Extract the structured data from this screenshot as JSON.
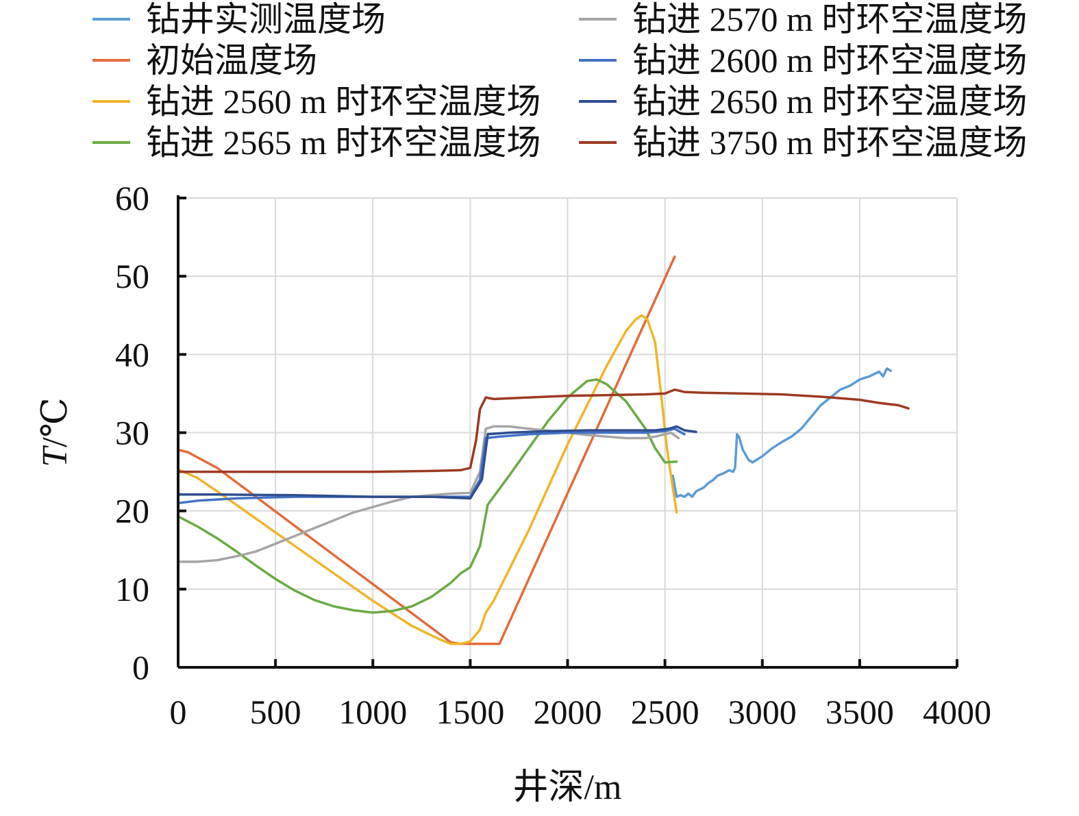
{
  "chart_data": {
    "type": "line",
    "xlabel": "井深/m",
    "ylabel_italic": "T",
    "ylabel_rest": "/℃",
    "xlim": [
      0,
      4000
    ],
    "ylim": [
      0,
      60
    ],
    "xticks": [
      0,
      500,
      1000,
      1500,
      2000,
      2500,
      3000,
      3500,
      4000
    ],
    "yticks": [
      0,
      10,
      20,
      30,
      40,
      50,
      60
    ],
    "xtick_labels": [
      "0",
      "500",
      "1000",
      "1500",
      "2000",
      "2500",
      "3000",
      "3500",
      "4000"
    ],
    "ytick_labels": [
      "0",
      "10",
      "20",
      "30",
      "40",
      "50",
      "60"
    ],
    "grid": true,
    "legend_position": "top",
    "series": [
      {
        "name": "钻井实测温度场",
        "color": "#5b9bd5",
        "points": [
          [
            2540,
            24.5
          ],
          [
            2555,
            22.5
          ],
          [
            2560,
            21.8
          ],
          [
            2580,
            22.0
          ],
          [
            2600,
            21.8
          ],
          [
            2620,
            22.2
          ],
          [
            2640,
            21.8
          ],
          [
            2660,
            22.5
          ],
          [
            2700,
            23.0
          ],
          [
            2720,
            23.5
          ],
          [
            2750,
            24.0
          ],
          [
            2770,
            24.5
          ],
          [
            2800,
            24.8
          ],
          [
            2830,
            25.2
          ],
          [
            2850,
            25.0
          ],
          [
            2860,
            25.5
          ],
          [
            2870,
            29.8
          ],
          [
            2880,
            29.5
          ],
          [
            2900,
            27.8
          ],
          [
            2930,
            26.5
          ],
          [
            2950,
            26.2
          ],
          [
            3000,
            27.0
          ],
          [
            3050,
            28.0
          ],
          [
            3100,
            28.8
          ],
          [
            3150,
            29.5
          ],
          [
            3200,
            30.5
          ],
          [
            3250,
            32.0
          ],
          [
            3300,
            33.5
          ],
          [
            3350,
            34.5
          ],
          [
            3400,
            35.5
          ],
          [
            3450,
            36.0
          ],
          [
            3500,
            36.8
          ],
          [
            3550,
            37.2
          ],
          [
            3600,
            37.8
          ],
          [
            3620,
            37.2
          ],
          [
            3640,
            38.2
          ],
          [
            3660,
            37.9
          ]
        ]
      },
      {
        "name": "初始温度场",
        "color": "#e26b3a",
        "points": [
          [
            0,
            27.8
          ],
          [
            50,
            27.5
          ],
          [
            200,
            25.5
          ],
          [
            1400,
            3.2
          ],
          [
            1450,
            3.0
          ],
          [
            1650,
            3.0
          ],
          [
            2550,
            52.5
          ]
        ]
      },
      {
        "name": "钻进 2560 m 时环空温度场",
        "color": "#f0b429",
        "points": [
          [
            0,
            25.3
          ],
          [
            100,
            24.2
          ],
          [
            200,
            22.5
          ],
          [
            400,
            19.0
          ],
          [
            600,
            15.5
          ],
          [
            800,
            12.0
          ],
          [
            1000,
            8.5
          ],
          [
            1200,
            5.3
          ],
          [
            1350,
            3.5
          ],
          [
            1400,
            3.0
          ],
          [
            1450,
            3.0
          ],
          [
            1500,
            3.3
          ],
          [
            1550,
            4.8
          ],
          [
            1580,
            7.0
          ],
          [
            1620,
            8.5
          ],
          [
            1700,
            12.5
          ],
          [
            1800,
            17.5
          ],
          [
            1900,
            23.0
          ],
          [
            2000,
            28.5
          ],
          [
            2100,
            33.5
          ],
          [
            2200,
            38.5
          ],
          [
            2300,
            43.0
          ],
          [
            2350,
            44.5
          ],
          [
            2380,
            45.0
          ],
          [
            2410,
            44.5
          ],
          [
            2450,
            41.5
          ],
          [
            2480,
            35.0
          ],
          [
            2510,
            28.0
          ],
          [
            2540,
            23.0
          ],
          [
            2560,
            19.8
          ]
        ]
      },
      {
        "name": "钻进 2565 m 时环空温度场",
        "color": "#6aaa44",
        "points": [
          [
            0,
            19.3
          ],
          [
            100,
            18.0
          ],
          [
            200,
            16.5
          ],
          [
            300,
            14.8
          ],
          [
            400,
            13.0
          ],
          [
            500,
            11.3
          ],
          [
            600,
            9.8
          ],
          [
            700,
            8.6
          ],
          [
            800,
            7.8
          ],
          [
            900,
            7.3
          ],
          [
            1000,
            7.0
          ],
          [
            1100,
            7.2
          ],
          [
            1200,
            7.8
          ],
          [
            1300,
            9.0
          ],
          [
            1400,
            10.8
          ],
          [
            1450,
            12.0
          ],
          [
            1500,
            12.8
          ],
          [
            1550,
            15.5
          ],
          [
            1590,
            20.8
          ],
          [
            1620,
            21.8
          ],
          [
            1700,
            24.5
          ],
          [
            1800,
            28.0
          ],
          [
            1900,
            31.5
          ],
          [
            2000,
            34.5
          ],
          [
            2100,
            36.6
          ],
          [
            2150,
            36.8
          ],
          [
            2200,
            36.2
          ],
          [
            2300,
            34.0
          ],
          [
            2400,
            30.5
          ],
          [
            2450,
            28.0
          ],
          [
            2500,
            26.2
          ],
          [
            2560,
            26.3
          ]
        ]
      },
      {
        "name": "钻进 2570 m 时环空温度场",
        "color": "#a5a5a5",
        "points": [
          [
            0,
            13.5
          ],
          [
            100,
            13.5
          ],
          [
            200,
            13.7
          ],
          [
            300,
            14.2
          ],
          [
            400,
            14.8
          ],
          [
            500,
            15.8
          ],
          [
            600,
            16.8
          ],
          [
            700,
            17.8
          ],
          [
            800,
            18.8
          ],
          [
            900,
            19.8
          ],
          [
            1000,
            20.5
          ],
          [
            1100,
            21.2
          ],
          [
            1200,
            21.8
          ],
          [
            1300,
            22.0
          ],
          [
            1400,
            22.2
          ],
          [
            1500,
            22.3
          ],
          [
            1550,
            25.0
          ],
          [
            1580,
            30.5
          ],
          [
            1620,
            30.8
          ],
          [
            1700,
            30.8
          ],
          [
            1800,
            30.5
          ],
          [
            2000,
            30.0
          ],
          [
            2100,
            29.7
          ],
          [
            2200,
            29.5
          ],
          [
            2300,
            29.3
          ],
          [
            2400,
            29.3
          ],
          [
            2450,
            29.5
          ],
          [
            2500,
            29.8
          ],
          [
            2530,
            30.0
          ],
          [
            2570,
            29.3
          ]
        ]
      },
      {
        "name": "钻进 2600 m 时环空温度场",
        "color": "#4472c4",
        "points": [
          [
            0,
            21.0
          ],
          [
            100,
            21.3
          ],
          [
            300,
            21.6
          ],
          [
            600,
            21.8
          ],
          [
            1000,
            21.8
          ],
          [
            1300,
            21.8
          ],
          [
            1500,
            21.8
          ],
          [
            1550,
            24.0
          ],
          [
            1580,
            29.3
          ],
          [
            1650,
            29.5
          ],
          [
            1800,
            29.8
          ],
          [
            2000,
            30.0
          ],
          [
            2200,
            30.0
          ],
          [
            2400,
            30.0
          ],
          [
            2500,
            30.2
          ],
          [
            2550,
            30.5
          ],
          [
            2600,
            29.8
          ]
        ]
      },
      {
        "name": "钻进 2650 m 时环空温度场",
        "color": "#2f4d8f",
        "points": [
          [
            0,
            22.1
          ],
          [
            200,
            22.1
          ],
          [
            600,
            22.0
          ],
          [
            1000,
            21.8
          ],
          [
            1300,
            21.8
          ],
          [
            1500,
            21.6
          ],
          [
            1560,
            24.0
          ],
          [
            1590,
            29.8
          ],
          [
            1700,
            30.0
          ],
          [
            1900,
            30.2
          ],
          [
            2100,
            30.3
          ],
          [
            2300,
            30.3
          ],
          [
            2450,
            30.3
          ],
          [
            2520,
            30.5
          ],
          [
            2560,
            30.8
          ],
          [
            2600,
            30.3
          ],
          [
            2660,
            30.1
          ]
        ]
      },
      {
        "name": "钻进 3750 m 时环空温度场",
        "color": "#9c3a22",
        "points": [
          [
            0,
            25.0
          ],
          [
            200,
            25.0
          ],
          [
            600,
            25.0
          ],
          [
            1000,
            25.0
          ],
          [
            1300,
            25.1
          ],
          [
            1450,
            25.2
          ],
          [
            1500,
            25.5
          ],
          [
            1530,
            29.0
          ],
          [
            1550,
            33.0
          ],
          [
            1580,
            34.5
          ],
          [
            1620,
            34.3
          ],
          [
            1800,
            34.5
          ],
          [
            2000,
            34.7
          ],
          [
            2200,
            34.8
          ],
          [
            2400,
            34.9
          ],
          [
            2500,
            35.0
          ],
          [
            2550,
            35.5
          ],
          [
            2600,
            35.2
          ],
          [
            2700,
            35.1
          ],
          [
            2900,
            35.0
          ],
          [
            3100,
            34.9
          ],
          [
            3300,
            34.6
          ],
          [
            3500,
            34.2
          ],
          [
            3600,
            33.8
          ],
          [
            3700,
            33.5
          ],
          [
            3750,
            33.1
          ]
        ]
      }
    ]
  }
}
